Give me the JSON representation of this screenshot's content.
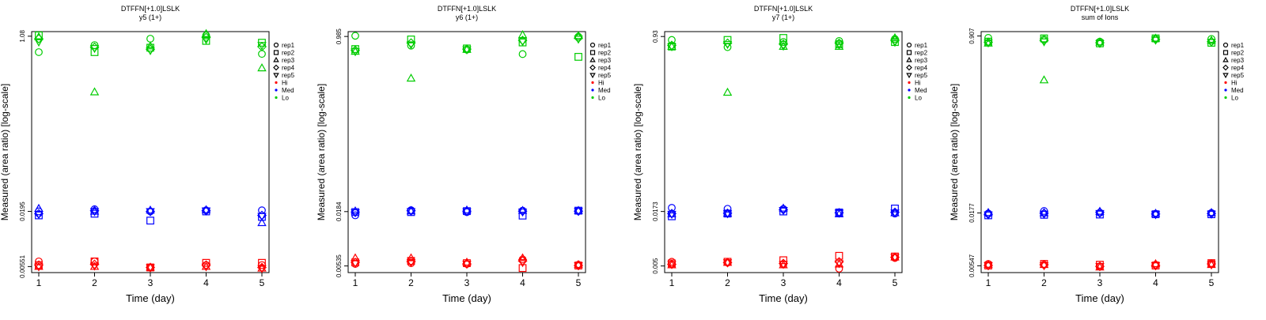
{
  "figure": {
    "legend_title": "",
    "legend": [
      {
        "label": "rep1",
        "kind": "marker",
        "shape": "circle"
      },
      {
        "label": "rep2",
        "kind": "marker",
        "shape": "square"
      },
      {
        "label": "rep3",
        "kind": "marker",
        "shape": "triangle-up"
      },
      {
        "label": "rep4",
        "kind": "marker",
        "shape": "diamond"
      },
      {
        "label": "rep5",
        "kind": "marker",
        "shape": "triangle-down"
      },
      {
        "label": "Hi",
        "kind": "color",
        "color": "#ff0000"
      },
      {
        "label": "Med",
        "kind": "color",
        "color": "#0000ff"
      },
      {
        "label": "Lo",
        "kind": "color",
        "color": "#00cc00"
      }
    ],
    "colors": {
      "Hi": "#ff0000",
      "Med": "#0000ff",
      "Lo": "#00cc00"
    }
  },
  "chart_data": [
    {
      "type": "scatter",
      "title": "DTFFN[+1.0]LSLK",
      "subtitle": "y5 (1+)",
      "xlabel": "Time (day)",
      "ylabel": "Measured (area ratio) [log-scale]",
      "x_ticks": [
        1,
        2,
        3,
        4,
        5
      ],
      "y_ticks": [
        "0.00551",
        "0.0195",
        "1.08"
      ],
      "y_scale": "log",
      "ylim": [
        0.0048,
        1.2
      ],
      "legend_position": "right",
      "series": [
        {
          "name": "rep1",
          "level": "Hi",
          "values": [
            0.0062,
            0.0062,
            0.0054,
            0.0057,
            0.0057
          ]
        },
        {
          "name": "rep2",
          "level": "Hi",
          "values": [
            0.0057,
            0.0062,
            0.0054,
            0.006,
            0.006
          ]
        },
        {
          "name": "rep3",
          "level": "Hi",
          "values": [
            0.0055,
            0.0055,
            0.0054,
            0.0055,
            0.0053
          ]
        },
        {
          "name": "rep4",
          "level": "Hi",
          "values": [
            0.0057,
            0.0058,
            0.0054,
            0.0057,
            0.0054
          ]
        },
        {
          "name": "rep5",
          "level": "Hi",
          "values": [
            0.0055,
            0.0056,
            0.0054,
            0.0055,
            0.0053
          ]
        },
        {
          "name": "rep1",
          "level": "Med",
          "values": [
            0.0195,
            0.0205,
            0.0195,
            0.02,
            0.02
          ]
        },
        {
          "name": "rep2",
          "level": "Med",
          "values": [
            0.0178,
            0.0185,
            0.0158,
            0.0195,
            0.0172
          ]
        },
        {
          "name": "rep3",
          "level": "Med",
          "values": [
            0.0208,
            0.0195,
            0.02,
            0.0202,
            0.015
          ]
        },
        {
          "name": "rep4",
          "level": "Med",
          "values": [
            0.0185,
            0.0198,
            0.0195,
            0.0198,
            0.0178
          ]
        },
        {
          "name": "rep5",
          "level": "Med",
          "values": [
            0.0183,
            0.0195,
            0.0195,
            0.0198,
            0.0175
          ]
        },
        {
          "name": "rep1",
          "level": "Lo",
          "values": [
            0.75,
            0.88,
            1.02,
            1.1,
            0.72
          ]
        },
        {
          "name": "rep2",
          "level": "Lo",
          "values": [
            1.1,
            0.75,
            0.83,
            0.97,
            0.93
          ]
        },
        {
          "name": "rep3",
          "level": "Lo",
          "values": [
            1.06,
            0.3,
            0.86,
            1.14,
            0.52
          ]
        },
        {
          "name": "rep4",
          "level": "Lo",
          "values": [
            1.02,
            0.84,
            0.8,
            1.05,
            0.85
          ]
        },
        {
          "name": "rep5",
          "level": "Lo",
          "values": [
            0.95,
            0.82,
            0.78,
            1.0,
            0.88
          ]
        }
      ]
    },
    {
      "type": "scatter",
      "title": "DTFFN[+1.0]LSLK",
      "subtitle": "y6 (1+)",
      "xlabel": "Time (day)",
      "ylabel": "Measured (area ratio) [log-scale]",
      "x_ticks": [
        1,
        2,
        3,
        4,
        5
      ],
      "y_ticks": [
        "0.00535",
        "0.0184",
        "0.985"
      ],
      "y_scale": "log",
      "ylim": [
        0.0046,
        1.1
      ],
      "legend_position": "right",
      "series": [
        {
          "name": "rep1",
          "level": "Hi",
          "values": [
            0.0056,
            0.0057,
            0.0056,
            0.0062,
            0.0055
          ]
        },
        {
          "name": "rep2",
          "level": "Hi",
          "values": [
            0.0058,
            0.006,
            0.0057,
            0.0051,
            0.0054
          ]
        },
        {
          "name": "rep3",
          "level": "Hi",
          "values": [
            0.0064,
            0.0064,
            0.0058,
            0.0064,
            0.0055
          ]
        },
        {
          "name": "rep4",
          "level": "Hi",
          "values": [
            0.0058,
            0.0059,
            0.0056,
            0.006,
            0.0054
          ]
        },
        {
          "name": "rep5",
          "level": "Hi",
          "values": [
            0.0057,
            0.0058,
            0.0056,
            0.0058,
            0.0054
          ]
        },
        {
          "name": "rep1",
          "level": "Med",
          "values": [
            0.0169,
            0.019,
            0.0182,
            0.0188,
            0.0186
          ]
        },
        {
          "name": "rep2",
          "level": "Med",
          "values": [
            0.0182,
            0.0182,
            0.0186,
            0.0168,
            0.0188
          ]
        },
        {
          "name": "rep3",
          "level": "Med",
          "values": [
            0.0186,
            0.0186,
            0.019,
            0.0188,
            0.0188
          ]
        },
        {
          "name": "rep4",
          "level": "Med",
          "values": [
            0.0182,
            0.0188,
            0.0186,
            0.0186,
            0.0186
          ]
        },
        {
          "name": "rep5",
          "level": "Med",
          "values": [
            0.018,
            0.0185,
            0.0184,
            0.0183,
            0.0186
          ]
        },
        {
          "name": "rep1",
          "level": "Lo",
          "values": [
            1.0,
            0.8,
            0.73,
            0.66,
            0.98
          ]
        },
        {
          "name": "rep2",
          "level": "Lo",
          "values": [
            0.74,
            0.92,
            0.75,
            0.86,
            0.62
          ]
        },
        {
          "name": "rep3",
          "level": "Lo",
          "values": [
            0.7,
            0.38,
            0.73,
            1.02,
            1.0
          ]
        },
        {
          "name": "rep4",
          "level": "Lo",
          "values": [
            0.72,
            0.85,
            0.74,
            0.9,
            0.95
          ]
        },
        {
          "name": "rep5",
          "level": "Lo",
          "values": [
            0.7,
            0.82,
            0.73,
            0.88,
            0.93
          ]
        }
      ]
    },
    {
      "type": "scatter",
      "title": "DTFFN[+1.0]LSLK",
      "subtitle": "y7 (1+)",
      "xlabel": "Time (day)",
      "ylabel": "Measured (area ratio) [log-scale]",
      "x_ticks": [
        1,
        2,
        3,
        4,
        5
      ],
      "y_ticks": [
        "0.005",
        "0.0173",
        "0.93"
      ],
      "y_scale": "log",
      "ylim": [
        0.0043,
        1.04
      ],
      "legend_position": "right",
      "series": [
        {
          "name": "rep1",
          "level": "Hi",
          "values": [
            0.0055,
            0.0054,
            0.0052,
            0.0047,
            0.006
          ]
        },
        {
          "name": "rep2",
          "level": "Hi",
          "values": [
            0.0053,
            0.0055,
            0.0057,
            0.0063,
            0.0062
          ]
        },
        {
          "name": "rep3",
          "level": "Hi",
          "values": [
            0.0051,
            0.0054,
            0.0051,
            0.0052,
            0.0061
          ]
        },
        {
          "name": "rep4",
          "level": "Hi",
          "values": [
            0.0052,
            0.0054,
            0.0053,
            0.0055,
            0.0061
          ]
        },
        {
          "name": "rep5",
          "level": "Hi",
          "values": [
            0.0052,
            0.0054,
            0.0052,
            0.0053,
            0.0061
          ]
        },
        {
          "name": "rep1",
          "level": "Med",
          "values": [
            0.0188,
            0.0184,
            0.0183,
            0.017,
            0.0165
          ]
        },
        {
          "name": "rep2",
          "level": "Med",
          "values": [
            0.0155,
            0.0165,
            0.0173,
            0.0169,
            0.0185
          ]
        },
        {
          "name": "rep3",
          "level": "Med",
          "values": [
            0.0163,
            0.0165,
            0.0186,
            0.0163,
            0.0167
          ]
        },
        {
          "name": "rep4",
          "level": "Med",
          "values": [
            0.0165,
            0.0166,
            0.018,
            0.0168,
            0.017
          ]
        },
        {
          "name": "rep5",
          "level": "Med",
          "values": [
            0.0163,
            0.0165,
            0.0178,
            0.0167,
            0.0168
          ]
        },
        {
          "name": "rep1",
          "level": "Lo",
          "values": [
            0.86,
            0.73,
            0.82,
            0.84,
            0.88
          ]
        },
        {
          "name": "rep2",
          "level": "Lo",
          "values": [
            0.74,
            0.86,
            0.9,
            0.78,
            0.82
          ]
        },
        {
          "name": "rep3",
          "level": "Lo",
          "values": [
            0.74,
            0.26,
            0.74,
            0.74,
            0.9
          ]
        },
        {
          "name": "rep4",
          "level": "Lo",
          "values": [
            0.76,
            0.8,
            0.78,
            0.8,
            0.85
          ]
        },
        {
          "name": "rep5",
          "level": "Lo",
          "values": [
            0.74,
            0.78,
            0.75,
            0.77,
            0.82
          ]
        }
      ]
    },
    {
      "type": "scatter",
      "title": "DTFFN[+1.0]LSLK",
      "subtitle": "sum of Ions",
      "xlabel": "Time (day)",
      "ylabel": "Measured (area ratio) [log-scale]",
      "x_ticks": [
        1,
        2,
        3,
        4,
        5
      ],
      "y_ticks": [
        "0.00547",
        "0.0177",
        "0.907"
      ],
      "y_scale": "log",
      "ylim": [
        0.0047,
        1.0
      ],
      "legend_position": "right",
      "series": [
        {
          "name": "rep1",
          "level": "Hi",
          "values": [
            0.0057,
            0.0056,
            0.0054,
            0.0056,
            0.0058
          ]
        },
        {
          "name": "rep2",
          "level": "Hi",
          "values": [
            0.0055,
            0.0057,
            0.0056,
            0.0055,
            0.0058
          ]
        },
        {
          "name": "rep3",
          "level": "Hi",
          "values": [
            0.0056,
            0.0056,
            0.0053,
            0.0057,
            0.0056
          ]
        },
        {
          "name": "rep4",
          "level": "Hi",
          "values": [
            0.0055,
            0.0056,
            0.0054,
            0.0055,
            0.0057
          ]
        },
        {
          "name": "rep5",
          "level": "Hi",
          "values": [
            0.0055,
            0.0055,
            0.0054,
            0.0055,
            0.0056
          ]
        },
        {
          "name": "rep1",
          "level": "Med",
          "values": [
            0.0175,
            0.0185,
            0.0178,
            0.0174,
            0.0177
          ]
        },
        {
          "name": "rep2",
          "level": "Med",
          "values": [
            0.0168,
            0.017,
            0.0171,
            0.0172,
            0.0172
          ]
        },
        {
          "name": "rep3",
          "level": "Med",
          "values": [
            0.0178,
            0.0177,
            0.0183,
            0.0175,
            0.0178
          ]
        },
        {
          "name": "rep4",
          "level": "Med",
          "values": [
            0.0172,
            0.0176,
            0.018,
            0.0173,
            0.0175
          ]
        },
        {
          "name": "rep5",
          "level": "Med",
          "values": [
            0.017,
            0.0173,
            0.0176,
            0.0171,
            0.0173
          ]
        },
        {
          "name": "rep1",
          "level": "Lo",
          "values": [
            0.87,
            0.84,
            0.8,
            0.85,
            0.85
          ]
        },
        {
          "name": "rep2",
          "level": "Lo",
          "values": [
            0.8,
            0.86,
            0.77,
            0.86,
            0.78
          ]
        },
        {
          "name": "rep3",
          "level": "Lo",
          "values": [
            0.77,
            0.34,
            0.79,
            0.86,
            0.82
          ]
        },
        {
          "name": "rep4",
          "level": "Lo",
          "values": [
            0.79,
            0.82,
            0.78,
            0.84,
            0.8
          ]
        },
        {
          "name": "rep5",
          "level": "Lo",
          "values": [
            0.78,
            0.8,
            0.77,
            0.83,
            0.79
          ]
        }
      ]
    }
  ]
}
